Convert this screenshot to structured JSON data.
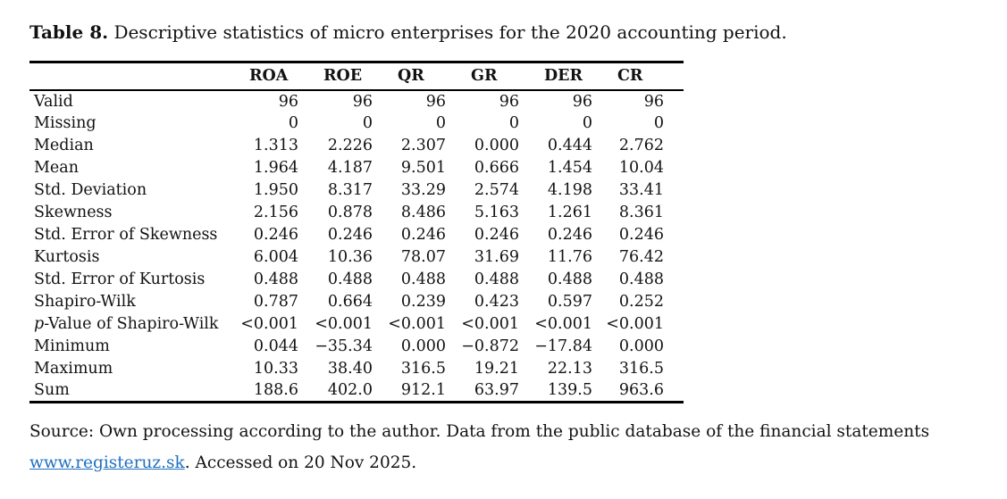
{
  "title": {
    "label": "Table 8.",
    "text": "Descriptive statistics of micro enterprises for the 2020 accounting period."
  },
  "table": {
    "columns": [
      "ROA",
      "ROE",
      "QR",
      "GR",
      "DER",
      "CR"
    ],
    "rows": [
      {
        "label": "Valid",
        "values": [
          "96",
          "96",
          "96",
          "96",
          "96",
          "96"
        ]
      },
      {
        "label": "Missing",
        "values": [
          "0",
          "0",
          "0",
          "0",
          "0",
          "0"
        ]
      },
      {
        "label": "Median",
        "values": [
          "1.313",
          "2.226",
          "2.307",
          "0.000",
          "0.444",
          "2.762"
        ]
      },
      {
        "label": "Mean",
        "values": [
          "1.964",
          "4.187",
          "9.501",
          "0.666",
          "1.454",
          "10.04"
        ]
      },
      {
        "label": "Std. Deviation",
        "values": [
          "1.950",
          "8.317",
          "33.29",
          "2.574",
          "4.198",
          "33.41"
        ]
      },
      {
        "label": "Skewness",
        "values": [
          "2.156",
          "0.878",
          "8.486",
          "5.163",
          "1.261",
          "8.361"
        ]
      },
      {
        "label": "Std. Error of Skewness",
        "values": [
          "0.246",
          "0.246",
          "0.246",
          "0.246",
          "0.246",
          "0.246"
        ]
      },
      {
        "label": "Kurtosis",
        "values": [
          "6.004",
          "10.36",
          "78.07",
          "31.69",
          "11.76",
          "76.42"
        ]
      },
      {
        "label": "Std. Error of Kurtosis",
        "values": [
          "0.488",
          "0.488",
          "0.488",
          "0.488",
          "0.488",
          "0.488"
        ]
      },
      {
        "label": "Shapiro-Wilk",
        "values": [
          "0.787",
          "0.664",
          "0.239",
          "0.423",
          "0.597",
          "0.252"
        ]
      },
      {
        "label": "p-Value of Shapiro-Wilk",
        "italic_prefix": "p",
        "values": [
          "<0.001",
          "<0.001",
          "<0.001",
          "<0.001",
          "<0.001",
          "<0.001"
        ]
      },
      {
        "label": "Minimum",
        "values": [
          "0.044",
          "−35.34",
          "0.000",
          "−0.872",
          "−17.84",
          "0.000"
        ]
      },
      {
        "label": "Maximum",
        "values": [
          "10.33",
          "38.40",
          "316.5",
          "19.21",
          "22.13",
          "316.5"
        ]
      },
      {
        "label": "Sum",
        "values": [
          "188.6",
          "402.0",
          "912.1",
          "63.97",
          "139.5",
          "963.6"
        ]
      }
    ]
  },
  "source": {
    "line1": "Source: Own processing according to the author. Data from the public database of the financial statements",
    "link_text": "www.registeruz.sk",
    "line2_rest": ". Accessed on 20 Nov 2025."
  },
  "colors": {
    "text": "#121212",
    "rule": "#000000",
    "link": "#2070c0"
  }
}
